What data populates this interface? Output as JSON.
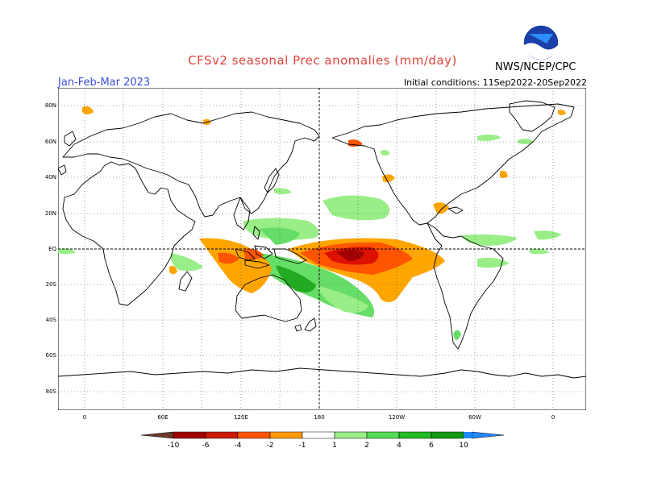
{
  "title": "CFSv2 seasonal Prec anomalies (mm/day)",
  "season": "Jan-Feb-Mar 2023",
  "initial_conditions": "Initial conditions: 11Sep2022-20Sep2022",
  "agency": "NWS/NCEP/CPC",
  "logo_text": "NOAA",
  "lat_labels": [
    "80N",
    "60N",
    "40N",
    "20N",
    "EQ",
    "20S",
    "40S",
    "60S",
    "80S"
  ],
  "lon_labels": [
    "0",
    "60E",
    "120E",
    "180",
    "120W",
    "60W",
    "0"
  ],
  "colorbar": {
    "ticks": [
      "-10",
      "-6",
      "-4",
      "-2",
      "-1",
      "1",
      "2",
      "4",
      "6",
      "10"
    ],
    "colors": [
      "#6b3a2a",
      "#a00000",
      "#cc1a00",
      "#ff5500",
      "#ff9900",
      "#ffa500",
      "#ffffff",
      "#99ee88",
      "#55dd55",
      "#22bb22",
      "#119911",
      "#2288ff"
    ]
  },
  "map": {
    "ocean_color": "#ffffff",
    "grid_style": "dotted",
    "anomaly_colors": {
      "strong_wet": "#22aa22",
      "wet": "#66dd66",
      "light_wet": "#99ee88",
      "light_dry": "#ffa500",
      "dry": "#ff5500",
      "very_dry": "#dd1100",
      "extreme_dry": "#a00000"
    }
  }
}
